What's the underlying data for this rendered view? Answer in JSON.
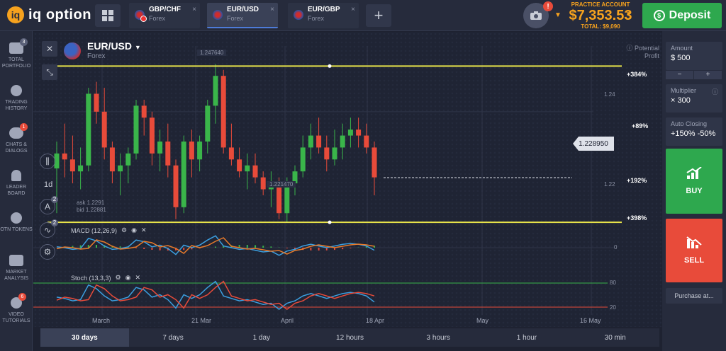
{
  "brand": {
    "name": "iq option",
    "mark": "iq"
  },
  "tabs": [
    {
      "name": "GBP/CHF",
      "sub": "Forex",
      "active": false
    },
    {
      "name": "EUR/USD",
      "sub": "Forex",
      "active": true
    },
    {
      "name": "EUR/GBP",
      "sub": "Forex",
      "active": false
    }
  ],
  "add_tab_label": "+",
  "notification_count": "!",
  "account": {
    "label": "PRACTICE ACCOUNT",
    "balance": "$7,353.53",
    "total": "TOTAL: $9,090"
  },
  "deposit_label": "Deposit",
  "sidebar": [
    {
      "label": "TOTAL PORTFOLIO",
      "badge": "3",
      "icon": "briefcase-icon"
    },
    {
      "label": "TRADING HISTORY",
      "badge": "",
      "icon": "clock-icon"
    },
    {
      "label": "CHATS & DIALOGS",
      "badge": "1",
      "icon": "chat-icon"
    },
    {
      "label": "LEADER BOARD",
      "badge": "",
      "icon": "trophy-icon"
    },
    {
      "label": "OTN TOKENS",
      "badge": "",
      "icon": "token-icon"
    },
    {
      "label": "MARKET ANALYSIS",
      "badge": "",
      "icon": "analysis-icon"
    },
    {
      "label": "VIDEO TUTORIALS",
      "badge": "6",
      "icon": "video-icon"
    }
  ],
  "asset": {
    "title": "EUR/USD",
    "sub": "Forex"
  },
  "potential_profit": "Potential Profit",
  "percent_labels": {
    "p1": "+384%",
    "p2": "+89%",
    "p3": "+192%",
    "p4": "+398%"
  },
  "current_price": "1.228950",
  "level_labels": {
    "top": "1.247640",
    "bottom": "1.221470"
  },
  "price_axis": {
    "a": "1.24",
    "b": "1.22"
  },
  "ask_bid": {
    "ask": "ask 1.2291",
    "bid": "bid 1.22881"
  },
  "timeframe_label": "1d",
  "tool_badges": {
    "b1": "2",
    "b2": "2"
  },
  "macd": {
    "label": "MACD (12,26,9)",
    "zero": "0"
  },
  "stoch": {
    "label": "Stoch (13,3,3)",
    "upper": "80",
    "lower": "20"
  },
  "x_axis": [
    "March",
    "21 Mar",
    "April",
    "18 Apr",
    "May",
    "16 May"
  ],
  "timeframes": [
    {
      "label": "30 days",
      "active": true
    },
    {
      "label": "7 days",
      "active": false
    },
    {
      "label": "1 day",
      "active": false
    },
    {
      "label": "12 hours",
      "active": false
    },
    {
      "label": "3 hours",
      "active": false
    },
    {
      "label": "1 hour",
      "active": false
    },
    {
      "label": "30 min",
      "active": false
    }
  ],
  "right_panel": {
    "amount_label": "Amount",
    "amount_value": "$ 500",
    "multiplier_label": "Multiplier",
    "multiplier_value": "× 300",
    "auto_closing_label": "Auto Closing",
    "auto_closing_value": "+150% -50%",
    "buy_label": "BUY",
    "sell_label": "SELL",
    "purchase_label": "Purchase at...",
    "minus": "−",
    "plus": "+"
  },
  "colors": {
    "up": "#3ab54a",
    "down": "#e84b3a",
    "level": "#e8e44a",
    "accent": "#f6a21e"
  },
  "chart_data": {
    "type": "candlestick",
    "candles": [
      {
        "o": 1.2305,
        "h": 1.235,
        "l": 1.223,
        "c": 1.233
      },
      {
        "o": 1.233,
        "h": 1.238,
        "l": 1.229,
        "c": 1.232
      },
      {
        "o": 1.232,
        "h": 1.236,
        "l": 1.228,
        "c": 1.23
      },
      {
        "o": 1.23,
        "h": 1.234,
        "l": 1.227,
        "c": 1.231
      },
      {
        "o": 1.231,
        "h": 1.244,
        "l": 1.23,
        "c": 1.243
      },
      {
        "o": 1.243,
        "h": 1.245,
        "l": 1.238,
        "c": 1.24
      },
      {
        "o": 1.24,
        "h": 1.244,
        "l": 1.232,
        "c": 1.234
      },
      {
        "o": 1.234,
        "h": 1.235,
        "l": 1.228,
        "c": 1.23
      },
      {
        "o": 1.23,
        "h": 1.233,
        "l": 1.226,
        "c": 1.231
      },
      {
        "o": 1.231,
        "h": 1.234,
        "l": 1.228,
        "c": 1.233
      },
      {
        "o": 1.233,
        "h": 1.242,
        "l": 1.232,
        "c": 1.241
      },
      {
        "o": 1.241,
        "h": 1.242,
        "l": 1.236,
        "c": 1.239
      },
      {
        "o": 1.239,
        "h": 1.24,
        "l": 1.231,
        "c": 1.233
      },
      {
        "o": 1.233,
        "h": 1.237,
        "l": 1.23,
        "c": 1.235
      },
      {
        "o": 1.235,
        "h": 1.238,
        "l": 1.229,
        "c": 1.231
      },
      {
        "o": 1.231,
        "h": 1.232,
        "l": 1.222,
        "c": 1.224
      },
      {
        "o": 1.224,
        "h": 1.236,
        "l": 1.223,
        "c": 1.235
      },
      {
        "o": 1.235,
        "h": 1.237,
        "l": 1.229,
        "c": 1.232
      },
      {
        "o": 1.232,
        "h": 1.236,
        "l": 1.23,
        "c": 1.235
      },
      {
        "o": 1.235,
        "h": 1.242,
        "l": 1.233,
        "c": 1.241
      },
      {
        "o": 1.241,
        "h": 1.248,
        "l": 1.238,
        "c": 1.246
      },
      {
        "o": 1.246,
        "h": 1.247,
        "l": 1.233,
        "c": 1.234
      },
      {
        "o": 1.234,
        "h": 1.238,
        "l": 1.231,
        "c": 1.232
      },
      {
        "o": 1.232,
        "h": 1.234,
        "l": 1.229,
        "c": 1.23
      },
      {
        "o": 1.23,
        "h": 1.233,
        "l": 1.227,
        "c": 1.231
      },
      {
        "o": 1.231,
        "h": 1.233,
        "l": 1.228,
        "c": 1.229
      },
      {
        "o": 1.229,
        "h": 1.23,
        "l": 1.226,
        "c": 1.227
      },
      {
        "o": 1.227,
        "h": 1.23,
        "l": 1.224,
        "c": 1.228
      },
      {
        "o": 1.228,
        "h": 1.229,
        "l": 1.222,
        "c": 1.223
      },
      {
        "o": 1.223,
        "h": 1.229,
        "l": 1.2215,
        "c": 1.228
      },
      {
        "o": 1.228,
        "h": 1.231,
        "l": 1.226,
        "c": 1.23
      },
      {
        "o": 1.23,
        "h": 1.236,
        "l": 1.229,
        "c": 1.234
      },
      {
        "o": 1.234,
        "h": 1.238,
        "l": 1.232,
        "c": 1.236
      },
      {
        "o": 1.236,
        "h": 1.239,
        "l": 1.233,
        "c": 1.234
      },
      {
        "o": 1.234,
        "h": 1.236,
        "l": 1.23,
        "c": 1.232
      },
      {
        "o": 1.232,
        "h": 1.237,
        "l": 1.231,
        "c": 1.234
      },
      {
        "o": 1.234,
        "h": 1.238,
        "l": 1.232,
        "c": 1.236
      },
      {
        "o": 1.236,
        "h": 1.239,
        "l": 1.234,
        "c": 1.237
      },
      {
        "o": 1.237,
        "h": 1.239,
        "l": 1.234,
        "c": 1.236
      },
      {
        "o": 1.236,
        "h": 1.238,
        "l": 1.233,
        "c": 1.234
      },
      {
        "o": 1.234,
        "h": 1.235,
        "l": 1.226,
        "c": 1.229
      }
    ],
    "ylim": [
      1.219,
      1.251
    ],
    "resistance": 1.24764,
    "support": 1.22147,
    "current": 1.22895
  }
}
